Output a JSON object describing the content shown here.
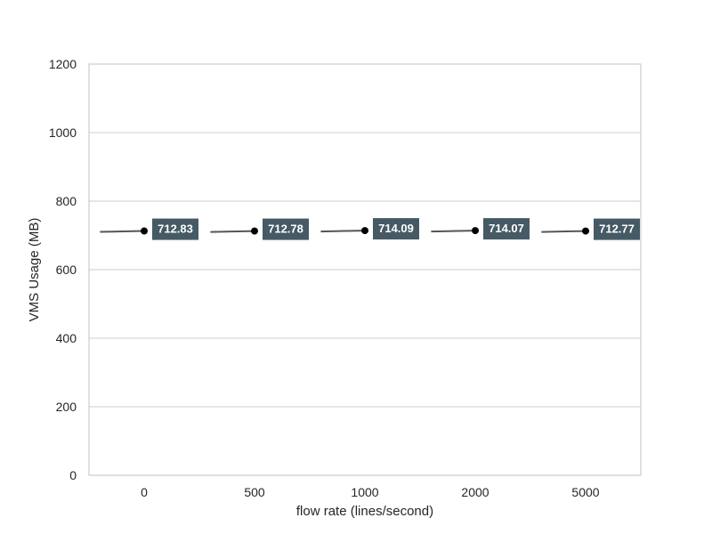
{
  "chart_data": {
    "type": "line",
    "xlabel": "flow rate (lines/second)",
    "ylabel": "VMS Usage (MB)",
    "categories": [
      "0",
      "500",
      "1000",
      "2000",
      "5000"
    ],
    "values": [
      712.83,
      712.78,
      714.09,
      714.07,
      712.77
    ],
    "data_labels": [
      "712.83",
      "712.78",
      "714.09",
      "714.07",
      "712.77"
    ],
    "ylim": [
      0,
      1200
    ],
    "yticks": [
      0,
      200,
      400,
      600,
      800,
      1000,
      1200
    ],
    "grid": "horizontal",
    "colors": {
      "line": "#555555",
      "marker": "#000000",
      "label_bg": "#455a64",
      "label_text": "#ffffff",
      "grid": "#cccccc",
      "spine": "#cccccc"
    }
  }
}
